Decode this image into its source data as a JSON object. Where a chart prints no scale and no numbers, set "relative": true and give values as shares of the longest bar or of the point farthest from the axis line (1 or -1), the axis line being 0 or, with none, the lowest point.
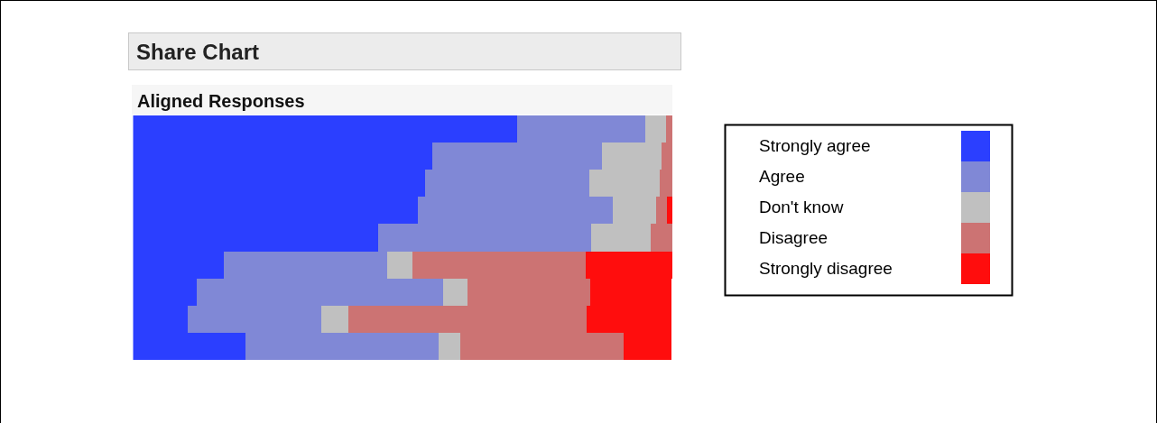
{
  "chart_data": {
    "type": "bar",
    "title": "Share Chart",
    "subtitle": "Aligned Responses",
    "orientation": "horizontal",
    "stacked": true,
    "relative": true,
    "legend": "right",
    "grid": false,
    "categories": [
      null,
      null,
      null,
      null,
      null,
      null,
      null,
      null,
      null
    ],
    "series": [
      {
        "name": "Strongly agree",
        "color": "#2b3fff",
        "values": [
          0.712,
          0.554,
          0.541,
          0.528,
          0.454,
          0.168,
          0.118,
          0.101,
          0.208
        ]
      },
      {
        "name": "Agree",
        "color": "#8088d6",
        "values": [
          0.237,
          0.315,
          0.305,
          0.361,
          0.395,
          0.302,
          0.456,
          0.248,
          0.359
        ]
      },
      {
        "name": "Don't know",
        "color": "#c0c0c0",
        "values": [
          0.04,
          0.111,
          0.131,
          0.081,
          0.111,
          0.047,
          0.046,
          0.05,
          0.04
        ]
      },
      {
        "name": "Disagree",
        "color": "#cc7373",
        "values": [
          0.011,
          0.02,
          0.023,
          0.02,
          0.04,
          0.322,
          0.228,
          0.442,
          0.302
        ]
      },
      {
        "name": "Strongly disagree",
        "color": "#ff0d0d",
        "values": [
          0,
          0,
          0,
          0.01,
          0,
          0.161,
          0.151,
          0.158,
          0.09
        ]
      }
    ]
  }
}
